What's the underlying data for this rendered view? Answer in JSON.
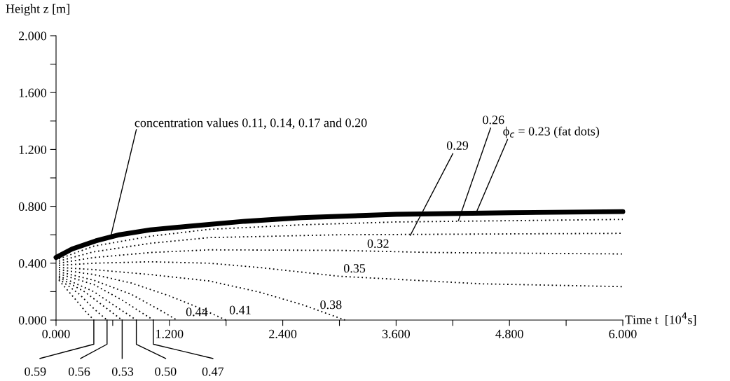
{
  "chart_data": {
    "type": "line",
    "xlabel": "Time t  [10$^{4}$s]",
    "ylabel": "Height z [m]",
    "xlim": [
      0,
      6
    ],
    "ylim": [
      0,
      2
    ],
    "xticks": [
      {
        "value": 0,
        "label": "0.000"
      },
      {
        "value": 0.6,
        "label": null
      },
      {
        "value": 1.2,
        "label": "1.200"
      },
      {
        "value": 1.8,
        "label": null
      },
      {
        "value": 2.4,
        "label": "2.400"
      },
      {
        "value": 3.0,
        "label": null
      },
      {
        "value": 3.6,
        "label": "3.600"
      },
      {
        "value": 4.2,
        "label": null
      },
      {
        "value": 4.8,
        "label": "4.800"
      },
      {
        "value": 5.4,
        "label": null
      },
      {
        "value": 6,
        "label": "6.000"
      }
    ],
    "yticks": [
      {
        "value": 0,
        "label": "0.000"
      },
      {
        "value": 0.2,
        "label": null
      },
      {
        "value": 0.4,
        "label": "0.400"
      },
      {
        "value": 0.6,
        "label": null
      },
      {
        "value": 0.8,
        "label": "0.800"
      },
      {
        "value": 1.0,
        "label": null
      },
      {
        "value": 1.2,
        "label": "1.200"
      },
      {
        "value": 1.4,
        "label": null
      },
      {
        "value": 1.6,
        "label": "1.600"
      },
      {
        "value": 1.8,
        "label": null
      },
      {
        "value": 2.0,
        "label": "2.000"
      }
    ],
    "grid": false,
    "legend": false,
    "series": [
      {
        "color": "#000000",
        "line_style": "solid",
        "x": [
          0,
          0.17,
          0.42,
          0.67,
          1.0,
          1.41,
          2.0,
          2.6,
          3.6,
          4.8,
          6.0
        ],
        "values": [
          0.44,
          0.5,
          0.557,
          0.6,
          0.635,
          0.66,
          0.695,
          0.72,
          0.744,
          0.755,
          0.763
        ]
      },
      {
        "color": "#000000",
        "line_style": "dotted",
        "x": [
          0.03,
          0.4,
          1.0,
          1.62,
          2.6,
          3.6,
          6.0
        ],
        "values": [
          0.43,
          0.52,
          0.59,
          0.638,
          0.67,
          0.69,
          0.708
        ]
      },
      {
        "color": "#000000",
        "line_style": "dotted",
        "x": [
          0.03,
          0.4,
          1.0,
          1.62,
          3.0,
          6.0
        ],
        "values": [
          0.415,
          0.48,
          0.54,
          0.58,
          0.6,
          0.61
        ]
      },
      {
        "color": "#000000",
        "line_style": "dotted",
        "x": [
          0.03,
          0.4,
          1.0,
          1.62,
          3.0,
          4.0,
          6.0
        ],
        "values": [
          0.4,
          0.44,
          0.475,
          0.494,
          0.49,
          0.475,
          0.465
        ]
      },
      {
        "color": "#000000",
        "line_style": "dotted",
        "x": [
          0.03,
          0.4,
          1.0,
          1.62,
          2.15,
          3.0,
          4.5,
          6.0
        ],
        "values": [
          0.385,
          0.4,
          0.41,
          0.4,
          0.37,
          0.308,
          0.255,
          0.235
        ]
      },
      {
        "color": "#000000",
        "line_style": "dotted",
        "x": [
          0.03,
          0.4,
          1.0,
          1.62,
          2.15,
          2.6,
          3.06
        ],
        "values": [
          0.37,
          0.355,
          0.32,
          0.275,
          0.197,
          0.11,
          0.0
        ]
      },
      {
        "color": "#000000",
        "line_style": "dotted",
        "x": [
          0.03,
          0.4,
          0.8,
          1.2,
          1.5,
          1.8
        ],
        "values": [
          0.355,
          0.32,
          0.26,
          0.17,
          0.09,
          0.0
        ]
      },
      {
        "color": "#000000",
        "line_style": "dotted",
        "x": [
          0.03,
          0.4,
          0.8,
          1.1,
          1.28
        ],
        "values": [
          0.34,
          0.28,
          0.18,
          0.07,
          0.0
        ]
      },
      {
        "color": "#000000",
        "line_style": "dotted",
        "x": [
          0.03,
          0.4,
          0.7,
          1.03
        ],
        "values": [
          0.325,
          0.25,
          0.14,
          0.0
        ]
      },
      {
        "color": "#000000",
        "line_style": "dotted",
        "x": [
          0.03,
          0.4,
          0.6,
          0.85
        ],
        "values": [
          0.31,
          0.2,
          0.11,
          0.0
        ]
      },
      {
        "color": "#000000",
        "line_style": "dotted",
        "x": [
          0.03,
          0.3,
          0.5,
          0.7
        ],
        "values": [
          0.3,
          0.2,
          0.1,
          0.0
        ]
      },
      {
        "color": "#000000",
        "line_style": "dotted",
        "x": [
          0.03,
          0.25,
          0.4,
          0.54
        ],
        "values": [
          0.29,
          0.18,
          0.08,
          0.0
        ]
      },
      {
        "color": "#000000",
        "line_style": "dotted",
        "x": [
          0.03,
          0.2,
          0.3,
          0.4
        ],
        "values": [
          0.28,
          0.15,
          0.07,
          0.0
        ]
      }
    ],
    "annotations": [
      {
        "text": "concentration values 0.11, 0.14, 0.17 and 0.20",
        "x": 0.58,
        "y": 0.59
      },
      {
        "text": "ϕ$_{c}$ = 0.23 (fat dots)",
        "x": 4.45,
        "y": 0.758
      },
      {
        "text": "0.26",
        "x": 4.26,
        "y": 0.7
      },
      {
        "text": "0.29",
        "x": 3.75,
        "y": 0.596
      },
      {
        "text": "0.32",
        "x": 3.0,
        "y": 0.49
      },
      {
        "text": "0.35",
        "x": 3.0,
        "y": 0.308
      },
      {
        "text": "0.38",
        "x": 3.06,
        "y": 0.0
      },
      {
        "text": "0.41",
        "x": 1.8,
        "y": 0.0
      },
      {
        "text": "0.44",
        "x": 1.28,
        "y": 0.0
      },
      {
        "text": "0.59",
        "x": 0.4,
        "y": 0
      },
      {
        "text": "0.56",
        "x": 0.54,
        "y": 0
      },
      {
        "text": "0.53",
        "x": 0.7,
        "y": 0
      },
      {
        "text": "0.50",
        "x": 0.85,
        "y": 0
      },
      {
        "text": "0.47",
        "x": 1.03,
        "y": 0
      }
    ]
  }
}
